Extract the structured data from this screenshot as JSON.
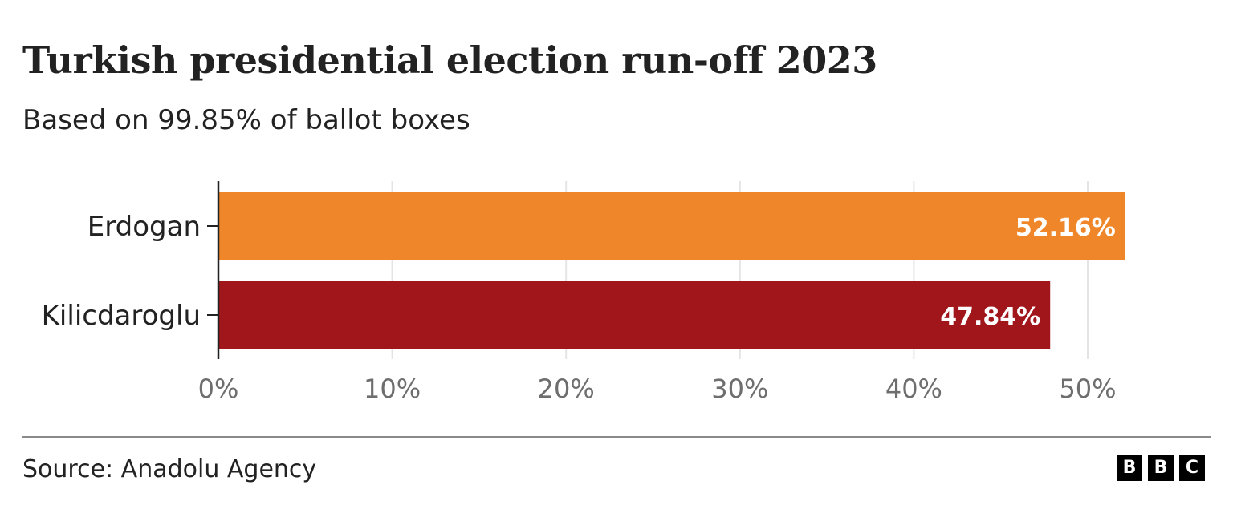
{
  "chart_data": {
    "type": "bar",
    "orientation": "horizontal",
    "title": "Turkish presidential election run-off 2023",
    "subtitle": "Based on 99.85% of ballot boxes",
    "categories": [
      "Erdogan",
      "Kilicdaroglu"
    ],
    "values": [
      52.16,
      47.84
    ],
    "data_labels": [
      "52.16%",
      "47.84%"
    ],
    "colors": [
      "#f0862a",
      "#a0161b"
    ],
    "xlabel": "",
    "ylabel": "",
    "xlim": [
      0,
      50
    ],
    "x_ticks": [
      0,
      10,
      20,
      30,
      40,
      50
    ],
    "x_tick_labels": [
      "0%",
      "10%",
      "20%",
      "30%",
      "40%",
      "50%"
    ],
    "grid": true,
    "legend": "none"
  },
  "footer": {
    "source": "Source: Anadolu Agency",
    "logo_letters": [
      "B",
      "B",
      "C"
    ]
  }
}
